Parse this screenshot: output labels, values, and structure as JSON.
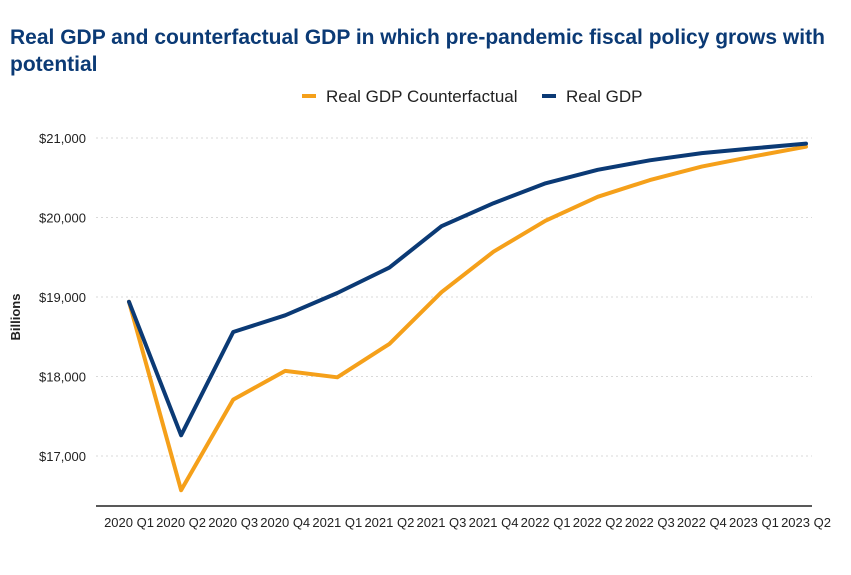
{
  "chart_data": {
    "type": "line",
    "title": "Real GDP and counterfactual  GDP in which pre-pandemic fiscal policy grows with potential",
    "xlabel": "",
    "ylabel": "Billions",
    "categories": [
      "2020 Q1",
      "2020 Q2",
      "2020 Q3",
      "2020 Q4",
      "2021 Q1",
      "2021 Q2",
      "2021 Q3",
      "2021 Q4",
      "2022 Q1",
      "2022 Q2",
      "2022 Q3",
      "2022 Q4",
      "2023 Q1",
      "2023 Q2"
    ],
    "ylim": [
      16400,
      21300
    ],
    "yticks": [
      17000,
      18000,
      19000,
      20000,
      21000
    ],
    "ytick_labels": [
      "$17,000",
      "$18,000",
      "$19,000",
      "$20,000",
      "$21,000"
    ],
    "grid": "horizontal dotted",
    "legend": "top-center",
    "series": [
      {
        "name": "Real GDP Counterfactual",
        "color": "#f5a01a",
        "values": [
          18940,
          16570,
          17710,
          18070,
          17990,
          18410,
          19060,
          19570,
          19960,
          20260,
          20470,
          20640,
          20770,
          20890
        ]
      },
      {
        "name": "Real GDP",
        "color": "#0b3a75",
        "values": [
          18940,
          17260,
          18560,
          18770,
          19050,
          19370,
          19890,
          20180,
          20430,
          20600,
          20720,
          20810,
          20870,
          20930
        ]
      }
    ]
  }
}
